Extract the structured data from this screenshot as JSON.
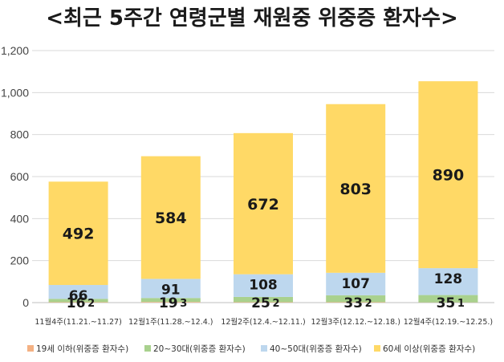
{
  "chart_data": {
    "type": "bar",
    "stacked": true,
    "title": "<최근 5주간 연령군별 재원중 위중증 환자수>",
    "xlabel": "",
    "ylabel": "",
    "ylim": [
      0,
      1200
    ],
    "yticks": [
      0,
      200,
      400,
      600,
      800,
      1000,
      1200
    ],
    "ytick_labels": [
      "0",
      "200",
      "400",
      "600",
      "800",
      "1,000",
      "1,200"
    ],
    "grid": true,
    "legend_position": "bottom",
    "categories": [
      "11월4주(11.21.~11.27)",
      "12월1주(11.28.~12.4.)",
      "12월2주(12.4.~12.11.)",
      "12월3주(12.12.~12.18.)",
      "12월4주(12.19.~12.25.)"
    ],
    "series": [
      {
        "name": "19세 이하(위중증 환자수)",
        "color": "#F4B183",
        "values": [
          2,
          3,
          2,
          2,
          1
        ]
      },
      {
        "name": "20~30대(위중증 환자수)",
        "color": "#A9D18E",
        "values": [
          16,
          19,
          25,
          33,
          35
        ]
      },
      {
        "name": "40~50대(위중증 환자수)",
        "color": "#BDD7EE",
        "values": [
          66,
          91,
          108,
          107,
          128
        ]
      },
      {
        "name": "60세 이상(위중증 환자수)",
        "color": "#FFD966",
        "values": [
          492,
          584,
          672,
          803,
          890
        ]
      }
    ]
  }
}
